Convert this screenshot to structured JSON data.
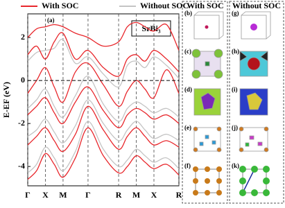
{
  "chart_data": {
    "type": "line",
    "title": "SrBi₃",
    "panel_label": "(a)",
    "ylabel": "E-EF (eV)",
    "x": [
      0,
      0.25,
      0.5,
      0.75,
      1.0,
      1.35,
      1.707,
      2.14,
      2.573,
      2.82,
      3.073,
      3.32,
      3.573,
      3.93,
      4.28
    ],
    "xlim": [
      0,
      4.28
    ],
    "xticks": [
      {
        "value": 0,
        "label": "Γ"
      },
      {
        "value": 0.5,
        "label": "X"
      },
      {
        "value": 1.0,
        "label": "M"
      },
      {
        "value": 1.707,
        "label": "Γ"
      },
      {
        "value": 2.573,
        "label": "R"
      },
      {
        "value": 3.073,
        "label": "M"
      },
      {
        "value": 3.573,
        "label": "X"
      },
      {
        "value": 4.28,
        "label": "R"
      }
    ],
    "ylim": [
      -4.9,
      3.1
    ],
    "yticks": [
      -4,
      -2,
      0,
      2
    ],
    "hline": 0,
    "legend": "top",
    "series": [
      {
        "name": "With SOC",
        "color": "#e8262b",
        "values": [
          -4.6,
          -4.2,
          -3.4,
          -3.9,
          -4.5,
          -3.6,
          -2.2,
          -3.5,
          -4.3,
          -4.0,
          -3.5,
          -3.8,
          -4.1,
          -3.9,
          -4.4
        ]
      },
      {
        "name": "With SOC",
        "color": "#e8262b",
        "values": [
          -3.0,
          -2.6,
          -2.2,
          -2.8,
          -3.3,
          -2.5,
          -1.2,
          -2.3,
          -3.2,
          -2.6,
          -2.2,
          -2.6,
          -3.0,
          -2.8,
          -3.1
        ]
      },
      {
        "name": "With SOC",
        "color": "#e8262b",
        "values": [
          -1.6,
          -1.2,
          -0.8,
          -1.5,
          -2.0,
          -1.0,
          -0.3,
          -1.4,
          -2.2,
          -1.6,
          -1.3,
          -1.5,
          -1.8,
          -1.6,
          -2.0
        ]
      },
      {
        "name": "With SOC",
        "color": "#e8262b",
        "values": [
          -0.6,
          0.0,
          0.6,
          -0.3,
          -1.0,
          0.4,
          0.8,
          -0.2,
          -1.2,
          -0.5,
          0.0,
          -0.4,
          -0.8,
          0.5,
          -0.6
        ]
      },
      {
        "name": "With SOC",
        "color": "#e8262b",
        "values": [
          1.2,
          1.6,
          1.0,
          1.8,
          2.2,
          1.0,
          1.4,
          0.6,
          0.2,
          1.0,
          1.2,
          0.9,
          1.4,
          1.0,
          0.4
        ]
      },
      {
        "name": "With SOC",
        "color": "#e8262b",
        "values": [
          2.0,
          2.4,
          2.5,
          2.6,
          2.5,
          2.2,
          2.0,
          1.6,
          1.8,
          2.5,
          2.7,
          2.5,
          2.3,
          2.6,
          1.4
        ]
      },
      {
        "name": "Without SOC",
        "color": "#c4c4c4",
        "values": [
          -4.3,
          -3.9,
          -3.1,
          -3.6,
          -4.2,
          -3.3,
          -1.9,
          -3.2,
          -4.0,
          -3.7,
          -3.2,
          -3.5,
          -3.8,
          -3.6,
          -4.1
        ]
      },
      {
        "name": "Without SOC",
        "color": "#c4c4c4",
        "values": [
          -2.6,
          -2.3,
          -1.8,
          -2.4,
          -2.9,
          -2.1,
          -0.9,
          -2.0,
          -2.8,
          -2.3,
          -1.9,
          -2.3,
          -2.7,
          -2.5,
          -2.8
        ]
      },
      {
        "name": "Without SOC",
        "color": "#c4c4c4",
        "values": [
          -1.3,
          -0.9,
          -0.4,
          -1.2,
          -1.7,
          -0.7,
          0.2,
          -1.1,
          -1.9,
          -1.3,
          -1.0,
          -1.2,
          -1.5,
          -1.3,
          -1.7
        ]
      },
      {
        "name": "Without SOC",
        "color": "#c4c4c4",
        "values": [
          0.9,
          1.3,
          1.4,
          1.5,
          1.9,
          0.8,
          1.1,
          0.3,
          -0.3,
          0.7,
          0.9,
          0.6,
          1.1,
          0.7,
          0.1
        ]
      }
    ]
  },
  "figure_panels": {
    "left": {
      "title": "With SOC",
      "labels": [
        "(b)",
        "(c)",
        "(d)",
        "(e)",
        "(f)"
      ]
    },
    "right": {
      "title": "Without SOC",
      "labels": [
        "(g)",
        "(h)",
        "(i)",
        "(j)",
        "(k)"
      ]
    }
  }
}
